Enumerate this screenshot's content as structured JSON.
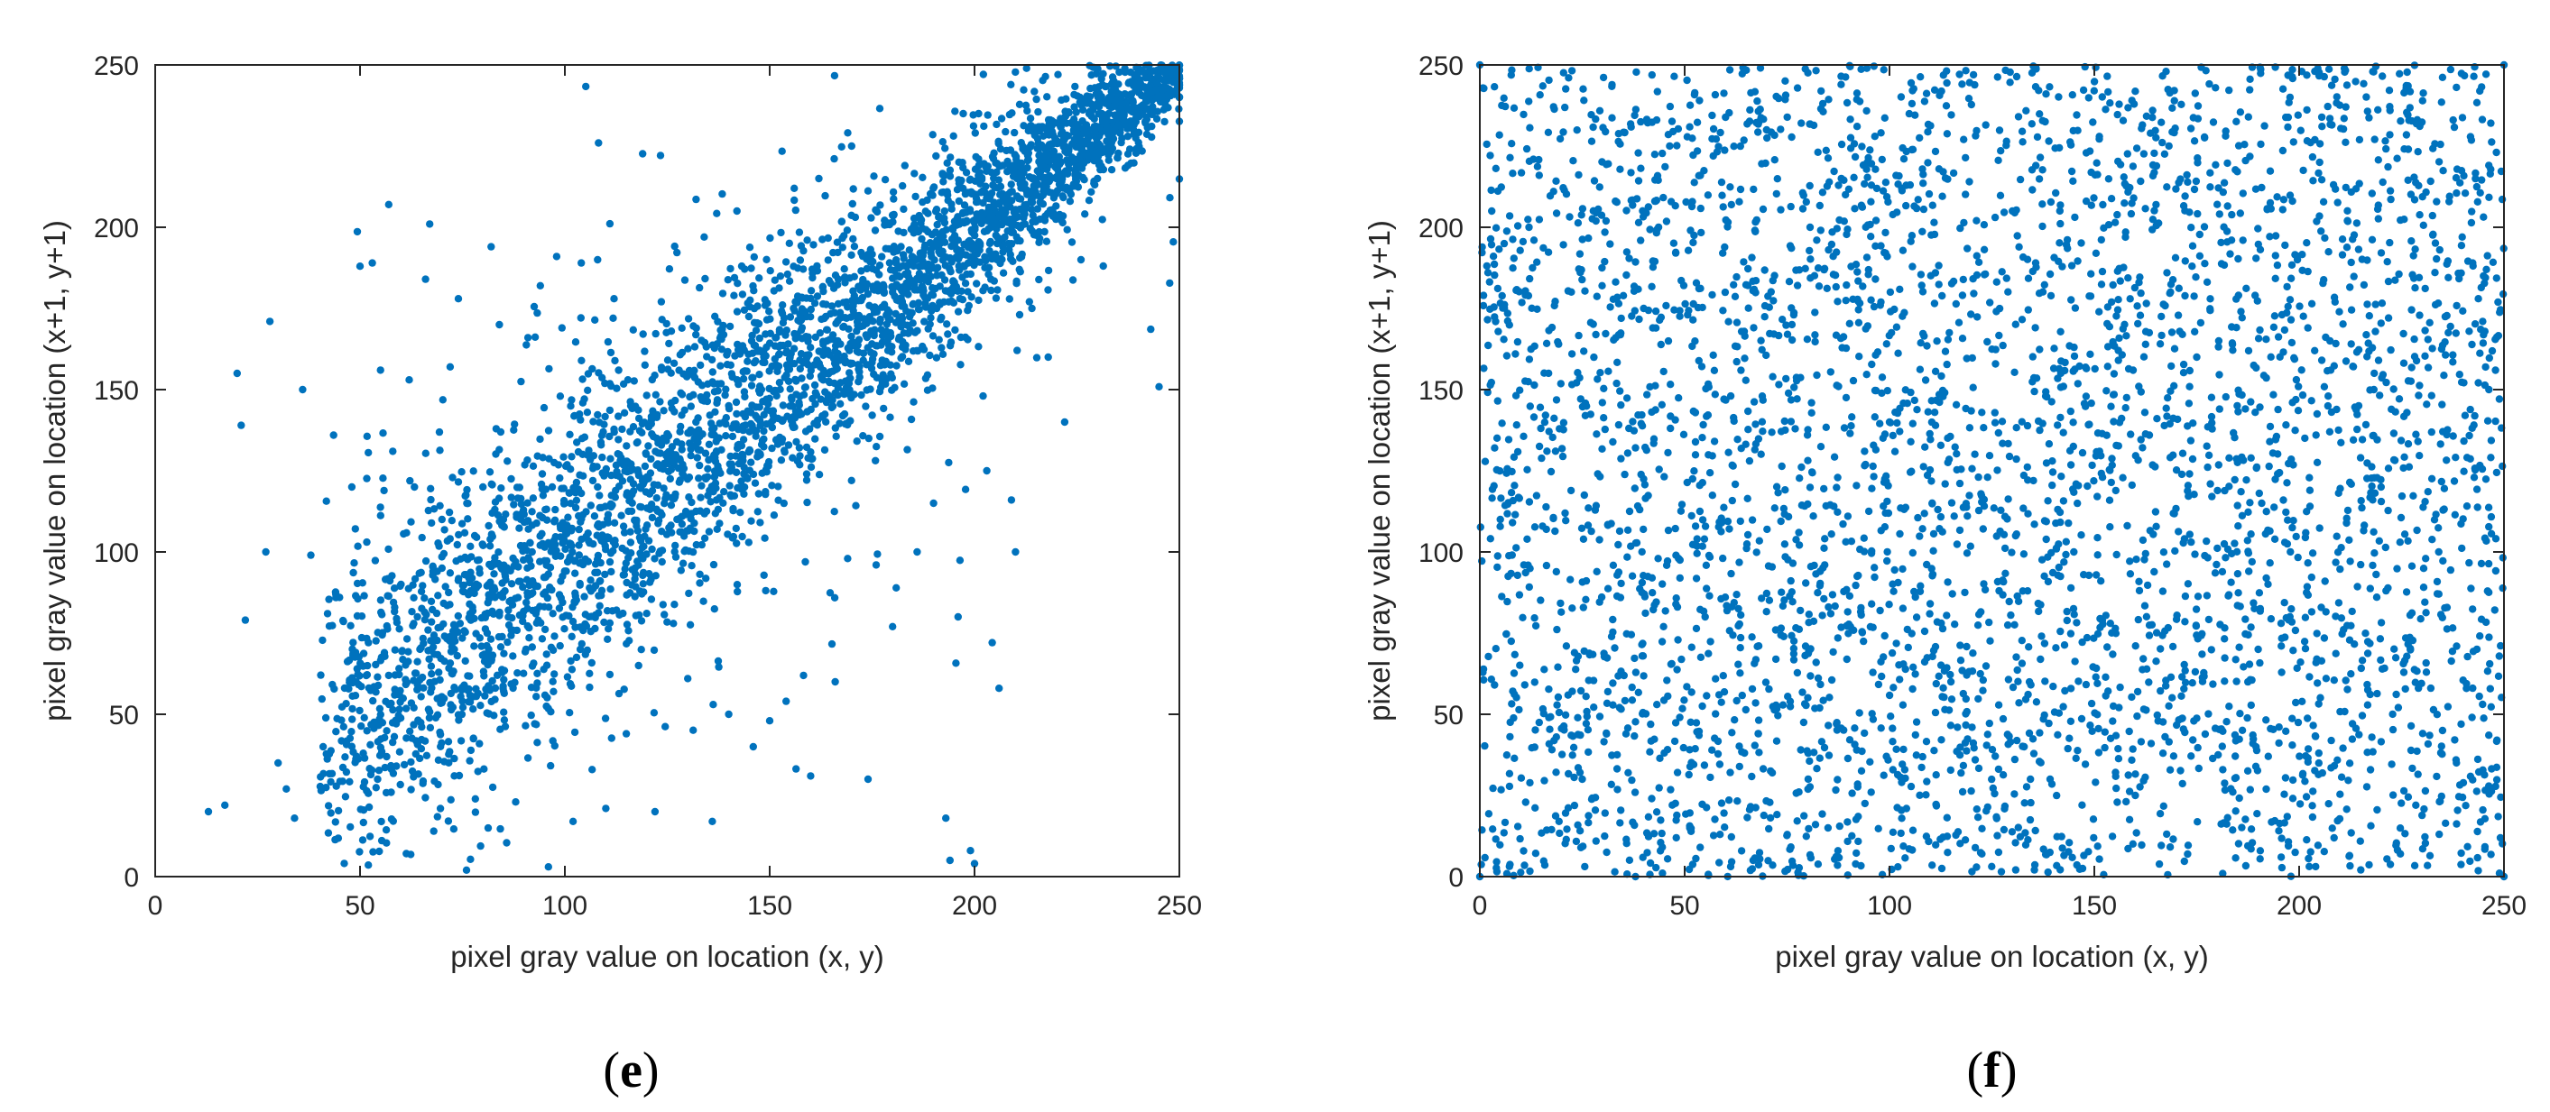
{
  "chart_data": [
    {
      "type": "scatter",
      "panel_label": "e",
      "xlabel": "pixel gray value on location (x, y)",
      "ylabel": "pixel gray value on location (x+1, y+1)",
      "xlim": [
        0,
        250
      ],
      "ylim": [
        0,
        250
      ],
      "xticks": [
        0,
        50,
        100,
        150,
        200,
        250
      ],
      "yticks": [
        0,
        50,
        100,
        150,
        200,
        250
      ],
      "grid": false,
      "point_color": "#0072BD",
      "series": [
        {
          "values_xy": [
            [
              13,
              20
            ],
            [
              17,
              22
            ],
            [
              20,
              155
            ],
            [
              21,
              139
            ],
            [
              22,
              79
            ],
            [
              27,
              100
            ],
            [
              28,
              171
            ],
            [
              30,
              35
            ],
            [
              32,
              27
            ],
            [
              34,
              18
            ],
            [
              36,
              150
            ],
            [
              38,
              99
            ],
            [
              41,
              40
            ],
            [
              45,
              86
            ],
            [
              48,
              120
            ],
            [
              50,
              188
            ],
            [
              53,
              189
            ],
            [
              55,
              156
            ],
            [
              57,
              207
            ],
            [
              58,
              131
            ],
            [
              62,
              153
            ],
            [
              66,
              184
            ],
            [
              67,
              201
            ],
            [
              68,
              14
            ],
            [
              70,
              110
            ],
            [
              72,
              157
            ],
            [
              74,
              178
            ],
            [
              76,
              2
            ],
            [
              80,
              120
            ],
            [
              82,
              194
            ],
            [
              84,
              170
            ],
            [
              88,
              23
            ],
            [
              91,
              166
            ],
            [
              94,
              182
            ],
            [
              96,
              3
            ],
            [
              98,
              191
            ],
            [
              102,
              17
            ],
            [
              104,
              189
            ],
            [
              108,
              190
            ],
            [
              110,
              21
            ],
            [
              112,
              178
            ],
            [
              115,
              44
            ],
            [
              118,
              65
            ],
            [
              122,
              20
            ],
            [
              126,
              168
            ],
            [
              130,
              61
            ],
            [
              134,
              197
            ],
            [
              136,
              17
            ],
            [
              140,
              50
            ],
            [
              142,
              205
            ],
            [
              146,
              40
            ],
            [
              150,
              48
            ],
            [
              154,
              54
            ],
            [
              156,
              212
            ],
            [
              160,
              31
            ],
            [
              162,
              215
            ],
            [
              166,
              60
            ],
            [
              170,
              225
            ],
            [
              174,
              30
            ],
            [
              176,
              96
            ],
            [
              180,
              77
            ],
            [
              183,
              219
            ],
            [
              186,
              100
            ],
            [
              190,
              115
            ],
            [
              193,
              18
            ],
            [
              194,
              5
            ],
            [
              196,
              80
            ],
            [
              199,
              8
            ],
            [
              200,
              4
            ],
            [
              201,
              235
            ],
            [
              203,
              125
            ],
            [
              206,
              58
            ],
            [
              209,
              116
            ],
            [
              210,
              100
            ],
            [
              214,
              175
            ],
            [
              218,
              160
            ],
            [
              222,
              140
            ],
            [
              226,
              190
            ],
            [
              230,
              215
            ],
            [
              234,
              245
            ],
            [
              60,
              90
            ],
            [
              64,
              80
            ],
            [
              70,
              95
            ],
            [
              78,
              105
            ],
            [
              85,
              110
            ],
            [
              92,
              100
            ],
            [
              100,
              115
            ],
            [
              108,
              120
            ],
            [
              116,
              125
            ],
            [
              124,
              135
            ],
            [
              132,
              140
            ],
            [
              140,
              145
            ],
            [
              148,
              150
            ],
            [
              156,
              158
            ],
            [
              164,
              165
            ],
            [
              172,
              172
            ],
            [
              180,
              180
            ],
            [
              188,
              188
            ],
            [
              196,
              196
            ],
            [
              204,
              204
            ],
            [
              212,
              212
            ],
            [
              220,
              220
            ],
            [
              228,
              228
            ],
            [
              236,
              236
            ],
            [
              244,
              244
            ],
            [
              248,
              248
            ]
          ]
        }
      ]
    },
    {
      "type": "scatter",
      "panel_label": "f",
      "xlabel": "pixel gray value on location (x, y)",
      "ylabel": "pixel gray value on location (x+1, y+1)",
      "xlim": [
        0,
        250
      ],
      "ylim": [
        0,
        250
      ],
      "xticks": [
        0,
        50,
        100,
        150,
        200,
        250
      ],
      "yticks": [
        0,
        50,
        100,
        150,
        200,
        250
      ],
      "grid": false,
      "point_color": "#0072BD",
      "series": [
        {
          "distribution": "uniform",
          "n_points": 4000,
          "values_xy": [
            [
              0,
              0
            ],
            [
              0,
              250
            ],
            [
              250,
              0
            ],
            [
              250,
              250
            ],
            [
              5,
              110
            ],
            [
              12,
              200
            ],
            [
              25,
              30
            ],
            [
              40,
              175
            ],
            [
              55,
              80
            ],
            [
              70,
              230
            ],
            [
              85,
              15
            ],
            [
              100,
              140
            ],
            [
              115,
              60
            ],
            [
              130,
              205
            ],
            [
              145,
              100
            ],
            [
              160,
              25
            ],
            [
              175,
              160
            ],
            [
              190,
              70
            ],
            [
              205,
              220
            ],
            [
              220,
              120
            ],
            [
              235,
              45
            ],
            [
              245,
              185
            ]
          ]
        }
      ]
    }
  ]
}
